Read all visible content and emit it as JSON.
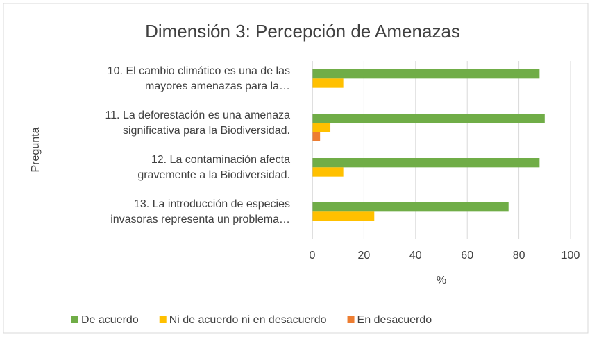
{
  "chart_data": {
    "type": "hbar",
    "title": "Dimensión 3: Percepción de Amenazas",
    "xlabel": "%",
    "ylabel": "Pregunta",
    "categories": [
      [
        "10. El cambio climático es una de las",
        "mayores amenazas para la…"
      ],
      [
        "11. La deforestación es una amenaza",
        "significativa para la Biodiversidad."
      ],
      [
        "12. La contaminación afecta",
        "gravemente a la Biodiversidad."
      ],
      [
        "13. La introducción de especies",
        "invasoras representa un problema…"
      ]
    ],
    "series": [
      {
        "name": "De acuerdo",
        "color": "#70ad47",
        "values": [
          88,
          90,
          88,
          76
        ]
      },
      {
        "name": "Ni de acuerdo ni en desacuerdo",
        "color": "#ffc000",
        "values": [
          12,
          7,
          12,
          24
        ]
      },
      {
        "name": "En desacuerdo",
        "color": "#ed7d31",
        "values": [
          0,
          3,
          0,
          0
        ]
      }
    ],
    "xlim": [
      0,
      100
    ],
    "xticks": [
      0,
      20,
      40,
      60,
      80,
      100
    ],
    "grid": true,
    "legend": "bottom"
  }
}
